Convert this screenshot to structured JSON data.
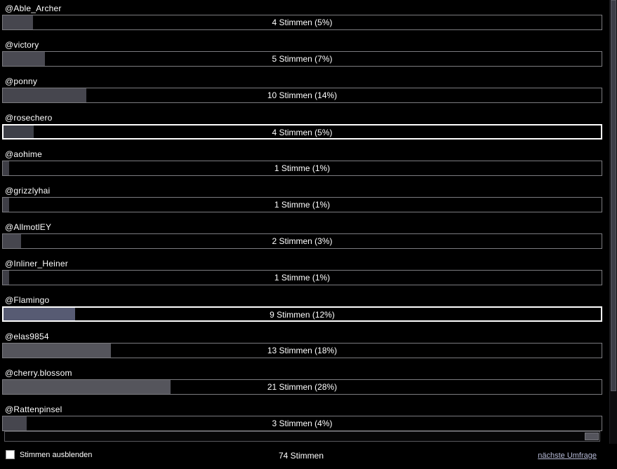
{
  "poll": {
    "rows": [
      {
        "label": "@Able_Archer",
        "votes": 4,
        "percent": 5,
        "votes_text": "4 Stimmen (5%)",
        "fill_color": "#46464e",
        "highlighted": false
      },
      {
        "label": "@victory",
        "votes": 5,
        "percent": 7,
        "votes_text": "5 Stimmen (7%)",
        "fill_color": "#4a4a52",
        "highlighted": false
      },
      {
        "label": "@ponny",
        "votes": 10,
        "percent": 14,
        "votes_text": "10 Stimmen (14%)",
        "fill_color": "#46464e",
        "highlighted": false
      },
      {
        "label": "@rosechero",
        "votes": 4,
        "percent": 5,
        "votes_text": "4 Stimmen (5%)",
        "fill_color": "#3e4048",
        "highlighted": true
      },
      {
        "label": "@aohime",
        "votes": 1,
        "percent": 1,
        "votes_text": "1 Stimme (1%)",
        "fill_color": "#3e3e46",
        "highlighted": false
      },
      {
        "label": "@grizzlyhai",
        "votes": 1,
        "percent": 1,
        "votes_text": "1 Stimme (1%)",
        "fill_color": "#3e3e46",
        "highlighted": false
      },
      {
        "label": "@AllmotlEY",
        "votes": 2,
        "percent": 3,
        "votes_text": "2 Stimmen (3%)",
        "fill_color": "#46464e",
        "highlighted": false
      },
      {
        "label": "@Inliner_Heiner",
        "votes": 1,
        "percent": 1,
        "votes_text": "1 Stimme (1%)",
        "fill_color": "#3e3e46",
        "highlighted": false
      },
      {
        "label": "@Flamingo",
        "votes": 9,
        "percent": 12,
        "votes_text": "9 Stimmen (12%)",
        "fill_color": "#575b73",
        "highlighted": true
      },
      {
        "label": "@elas9854",
        "votes": 13,
        "percent": 18,
        "votes_text": "13 Stimmen (18%)",
        "fill_color": "#55555c",
        "highlighted": false
      },
      {
        "label": "@cherry.blossom",
        "votes": 21,
        "percent": 28,
        "votes_text": "21 Stimmen (28%)",
        "fill_color": "#55555c",
        "highlighted": false
      },
      {
        "label": "@Rattenpinsel",
        "votes": 3,
        "percent": 4,
        "votes_text": "3 Stimmen (4%)",
        "fill_color": "#46464e",
        "highlighted": false
      }
    ],
    "colors": {
      "background": "#000000",
      "bar_border": "#7c7c80",
      "bar_border_highlighted": "#ffffff",
      "bar_text": "#ffffff",
      "link": "#b7bbd7"
    }
  },
  "footer": {
    "hide_votes_label": "Stimmen ausblenden",
    "hide_votes_checked": false,
    "total_votes_text": "74 Stimmen",
    "next_poll_label": "nächste Umfrage"
  }
}
